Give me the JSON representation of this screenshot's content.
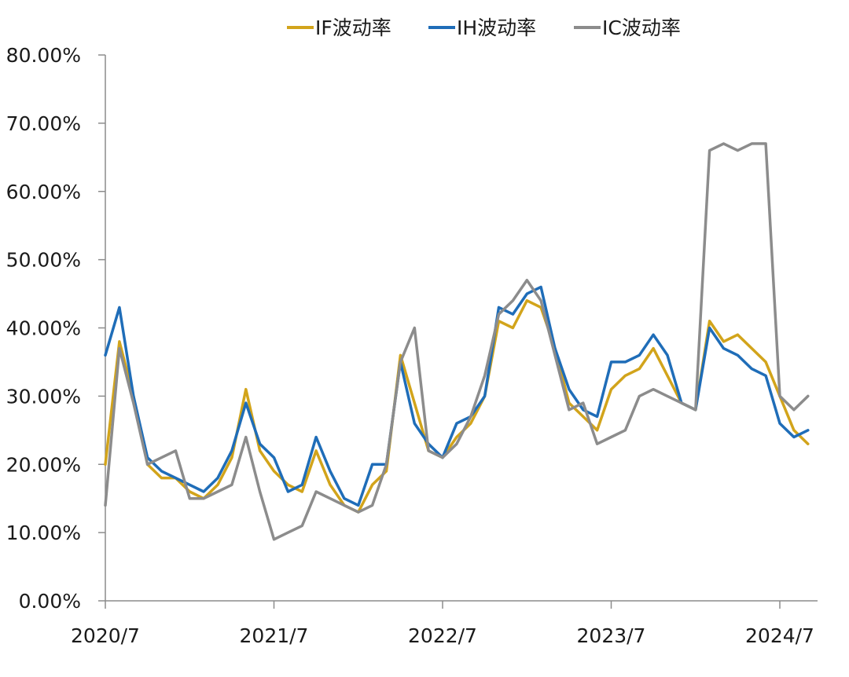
{
  "chart_data": {
    "type": "line",
    "title": "",
    "xlabel": "",
    "ylabel": "",
    "x_ticks": [
      "2020/7",
      "2021/7",
      "2022/7",
      "2023/7",
      "2024/7"
    ],
    "y_ticks": [
      "0.00%",
      "10.00%",
      "20.00%",
      "30.00%",
      "40.00%",
      "50.00%",
      "60.00%",
      "70.00%",
      "80.00%"
    ],
    "ylim": [
      0,
      80
    ],
    "grid": false,
    "legend_position": "top",
    "series": [
      {
        "name": "IF波动率",
        "color": "#D2A41B",
        "points": [
          [
            "2020/7",
            20
          ],
          [
            "2020/8",
            38
          ],
          [
            "2020/9",
            30
          ],
          [
            "2020/10",
            20
          ],
          [
            "2020/11",
            18
          ],
          [
            "2020/12",
            18
          ],
          [
            "2021/1",
            16
          ],
          [
            "2021/2",
            15
          ],
          [
            "2021/3",
            17
          ],
          [
            "2021/4",
            21
          ],
          [
            "2021/5",
            31
          ],
          [
            "2021/6",
            22
          ],
          [
            "2021/7",
            19
          ],
          [
            "2021/8",
            17
          ],
          [
            "2021/9",
            16
          ],
          [
            "2021/10",
            22
          ],
          [
            "2021/11",
            17
          ],
          [
            "2021/12",
            14
          ],
          [
            "2022/1",
            13
          ],
          [
            "2022/2",
            17
          ],
          [
            "2022/3",
            19
          ],
          [
            "2022/4",
            36
          ],
          [
            "2022/5",
            29
          ],
          [
            "2022/6",
            22
          ],
          [
            "2022/7",
            21
          ],
          [
            "2022/8",
            24
          ],
          [
            "2022/9",
            26
          ],
          [
            "2022/10",
            30
          ],
          [
            "2022/11",
            41
          ],
          [
            "2022/12",
            40
          ],
          [
            "2023/1",
            44
          ],
          [
            "2023/2",
            43
          ],
          [
            "2023/3",
            37
          ],
          [
            "2023/4",
            29
          ],
          [
            "2023/5",
            27
          ],
          [
            "2023/6",
            25
          ],
          [
            "2023/7",
            31
          ],
          [
            "2023/8",
            33
          ],
          [
            "2023/9",
            34
          ],
          [
            "2023/10",
            37
          ],
          [
            "2023/11",
            33
          ],
          [
            "2023/12",
            29
          ],
          [
            "2024/1",
            28
          ],
          [
            "2024/2",
            41
          ],
          [
            "2024/3",
            38
          ],
          [
            "2024/4",
            39
          ],
          [
            "2024/5",
            37
          ],
          [
            "2024/6",
            35
          ],
          [
            "2024/7",
            30
          ],
          [
            "2024/8",
            25
          ],
          [
            "2024/9",
            23
          ]
        ]
      },
      {
        "name": "IH波动率",
        "color": "#1F6DB8",
        "points": [
          [
            "2020/7",
            36
          ],
          [
            "2020/8",
            43
          ],
          [
            "2020/9",
            30
          ],
          [
            "2020/10",
            21
          ],
          [
            "2020/11",
            19
          ],
          [
            "2020/12",
            18
          ],
          [
            "2021/1",
            17
          ],
          [
            "2021/2",
            16
          ],
          [
            "2021/3",
            18
          ],
          [
            "2021/4",
            22
          ],
          [
            "2021/5",
            29
          ],
          [
            "2021/6",
            23
          ],
          [
            "2021/7",
            21
          ],
          [
            "2021/8",
            16
          ],
          [
            "2021/9",
            17
          ],
          [
            "2021/10",
            24
          ],
          [
            "2021/11",
            19
          ],
          [
            "2021/12",
            15
          ],
          [
            "2022/1",
            14
          ],
          [
            "2022/2",
            20
          ],
          [
            "2022/3",
            20
          ],
          [
            "2022/4",
            35
          ],
          [
            "2022/5",
            26
          ],
          [
            "2022/6",
            23
          ],
          [
            "2022/7",
            21
          ],
          [
            "2022/8",
            26
          ],
          [
            "2022/9",
            27
          ],
          [
            "2022/10",
            30
          ],
          [
            "2022/11",
            43
          ],
          [
            "2022/12",
            42
          ],
          [
            "2023/1",
            45
          ],
          [
            "2023/2",
            46
          ],
          [
            "2023/3",
            37
          ],
          [
            "2023/4",
            31
          ],
          [
            "2023/5",
            28
          ],
          [
            "2023/6",
            27
          ],
          [
            "2023/7",
            35
          ],
          [
            "2023/8",
            35
          ],
          [
            "2023/9",
            36
          ],
          [
            "2023/10",
            39
          ],
          [
            "2023/11",
            36
          ],
          [
            "2023/12",
            29
          ],
          [
            "2024/1",
            28
          ],
          [
            "2024/2",
            40
          ],
          [
            "2024/3",
            37
          ],
          [
            "2024/4",
            36
          ],
          [
            "2024/5",
            34
          ],
          [
            "2024/6",
            33
          ],
          [
            "2024/7",
            26
          ],
          [
            "2024/8",
            24
          ],
          [
            "2024/9",
            25
          ]
        ]
      },
      {
        "name": "IC波动率",
        "color": "#8C8C8C",
        "points": [
          [
            "2020/7",
            14
          ],
          [
            "2020/8",
            37
          ],
          [
            "2020/9",
            29
          ],
          [
            "2020/10",
            20
          ],
          [
            "2020/11",
            21
          ],
          [
            "2020/12",
            22
          ],
          [
            "2021/1",
            15
          ],
          [
            "2021/2",
            15
          ],
          [
            "2021/3",
            16
          ],
          [
            "2021/4",
            17
          ],
          [
            "2021/5",
            24
          ],
          [
            "2021/6",
            16
          ],
          [
            "2021/7",
            9
          ],
          [
            "2021/8",
            10
          ],
          [
            "2021/9",
            11
          ],
          [
            "2021/10",
            16
          ],
          [
            "2021/11",
            15
          ],
          [
            "2021/12",
            14
          ],
          [
            "2022/1",
            13
          ],
          [
            "2022/2",
            14
          ],
          [
            "2022/3",
            20
          ],
          [
            "2022/4",
            35
          ],
          [
            "2022/5",
            40
          ],
          [
            "2022/6",
            22
          ],
          [
            "2022/7",
            21
          ],
          [
            "2022/8",
            23
          ],
          [
            "2022/9",
            27
          ],
          [
            "2022/10",
            33
          ],
          [
            "2022/11",
            42
          ],
          [
            "2022/12",
            44
          ],
          [
            "2023/1",
            47
          ],
          [
            "2023/2",
            44
          ],
          [
            "2023/3",
            36
          ],
          [
            "2023/4",
            28
          ],
          [
            "2023/5",
            29
          ],
          [
            "2023/6",
            23
          ],
          [
            "2023/7",
            24
          ],
          [
            "2023/8",
            25
          ],
          [
            "2023/9",
            30
          ],
          [
            "2023/10",
            31
          ],
          [
            "2023/11",
            30
          ],
          [
            "2023/12",
            29
          ],
          [
            "2024/1",
            28
          ],
          [
            "2024/2",
            66
          ],
          [
            "2024/3",
            67
          ],
          [
            "2024/4",
            66
          ],
          [
            "2024/5",
            67
          ],
          [
            "2024/6",
            67
          ],
          [
            "2024/7",
            30
          ],
          [
            "2024/8",
            28
          ],
          [
            "2024/9",
            30
          ]
        ]
      }
    ]
  }
}
